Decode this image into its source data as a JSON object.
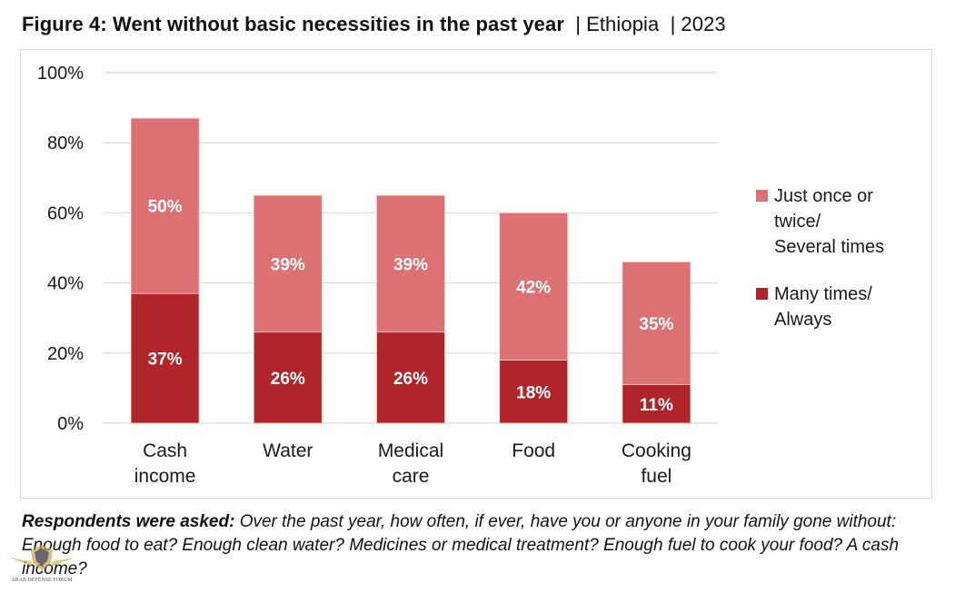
{
  "title": {
    "bold": "Figure 4: Went without basic necessities in the past year",
    "separator": "|",
    "country": "Ethiopia",
    "year": "2023"
  },
  "chart_data": {
    "type": "bar",
    "stacked": true,
    "title": "Figure 4: Went without basic necessities in the past year | Ethiopia | 2023",
    "xlabel": "",
    "ylabel": "",
    "ylim": [
      0,
      100
    ],
    "yticks": [
      0,
      20,
      40,
      60,
      80,
      100
    ],
    "ytick_labels": [
      "0%",
      "20%",
      "40%",
      "60%",
      "80%",
      "100%"
    ],
    "grid": true,
    "legend_position": "right",
    "categories": [
      "Cash income",
      "Water",
      "Medical care",
      "Food",
      "Cooking fuel"
    ],
    "category_lines": [
      [
        "Cash",
        "income"
      ],
      [
        "Water"
      ],
      [
        "Medical",
        "care"
      ],
      [
        "Food"
      ],
      [
        "Cooking",
        "fuel"
      ]
    ],
    "series": [
      {
        "name": "Many times/ Always",
        "legend_lines": [
          "Many times/",
          "Always"
        ],
        "color": "#b0252a",
        "values": [
          37,
          26,
          26,
          18,
          11
        ],
        "labels": [
          "37%",
          "26%",
          "26%",
          "18%",
          "11%"
        ]
      },
      {
        "name": "Just once or twice/ Several times",
        "legend_lines": [
          "Just once or",
          "twice/",
          "Several times"
        ],
        "color": "#dc7174",
        "values": [
          50,
          39,
          39,
          42,
          35
        ],
        "labels": [
          "50%",
          "39%",
          "39%",
          "42%",
          "35%"
        ]
      }
    ]
  },
  "footnote": {
    "lead": "Respondents were asked:",
    "question": "Over the past year, how often, if ever, have you or anyone in your family gone without: Enough food to eat? Enough clean water? Medicines or medical treatment? Enough fuel to cook your food? A cash income?"
  },
  "watermark": {
    "text": "ARAB DEFENSE FORUM"
  }
}
